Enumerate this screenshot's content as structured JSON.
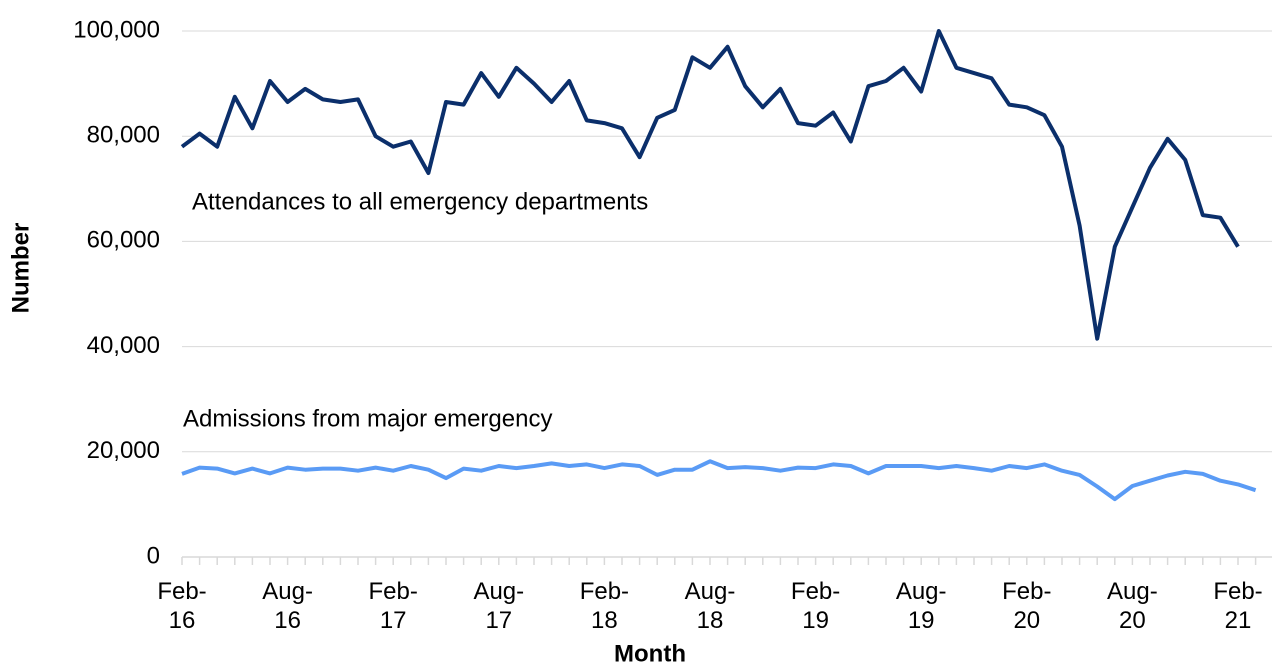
{
  "chart_data": {
    "type": "line",
    "annotations": [
      "Attendances to all emergency departments",
      "Admissions from major emergency"
    ],
    "x_label": "Month",
    "y_label": "Number",
    "categories": [
      "Feb-16",
      null,
      null,
      null,
      null,
      null,
      "Aug-16",
      null,
      null,
      null,
      null,
      null,
      "Feb-17",
      null,
      null,
      null,
      null,
      null,
      "Aug-17",
      null,
      null,
      null,
      null,
      null,
      "Feb-18",
      null,
      null,
      null,
      null,
      null,
      "Aug-18",
      null,
      null,
      null,
      null,
      null,
      "Feb-19",
      null,
      null,
      null,
      null,
      null,
      "Aug-19",
      null,
      null,
      null,
      null,
      null,
      "Feb-20",
      null,
      null,
      null,
      null,
      null,
      "Aug-20",
      null,
      null,
      null,
      null,
      null,
      "Feb-21",
      null
    ],
    "series": [
      {
        "name": "Attendances to all emergency departments",
        "color": "#0b2f6b",
        "values": [
          78000,
          80500,
          78000,
          87500,
          81500,
          90500,
          86500,
          89000,
          87000,
          86500,
          87000,
          80000,
          78000,
          79000,
          73000,
          86500,
          86000,
          92000,
          87500,
          93000,
          90000,
          86500,
          90500,
          83000,
          82500,
          81500,
          76000,
          83500,
          85000,
          95000,
          93000,
          97000,
          89500,
          85500,
          89000,
          82500,
          82000,
          84500,
          79000,
          89500,
          90500,
          93000,
          88500,
          100000,
          93000,
          92000,
          91000,
          86000,
          85500,
          84000,
          78000,
          63000,
          41500,
          59000,
          66500,
          74000,
          79500,
          75500,
          65000,
          64500,
          59000,
          null
        ]
      },
      {
        "name": "Admissions from major emergency",
        "color": "#5a9bf5",
        "values": [
          15800,
          17000,
          16800,
          15900,
          16800,
          15900,
          17000,
          16600,
          16800,
          16800,
          16400,
          17000,
          16400,
          17300,
          16600,
          15000,
          16800,
          16400,
          17300,
          16900,
          17300,
          17800,
          17300,
          17600,
          16900,
          17600,
          17300,
          15600,
          16600,
          16600,
          18200,
          16900,
          17100,
          16900,
          16400,
          17000,
          16900,
          17600,
          17300,
          15900,
          17300,
          17300,
          17300,
          16900,
          17300,
          16900,
          16400,
          17300,
          16900,
          17600,
          16400,
          15600,
          13400,
          11000,
          13500,
          14500,
          15500,
          16200,
          15800,
          14500,
          13800,
          12700
        ]
      }
    ],
    "ylim": [
      0,
      100000
    ],
    "yticks": [
      0,
      {
        "value": 20000,
        "label": "20,000"
      },
      {
        "value": 40000,
        "label": "40,000"
      },
      {
        "value": 60000,
        "label": "60,000"
      },
      {
        "value": 80000,
        "label": "80,000"
      },
      {
        "value": 100000,
        "label": "100,000"
      }
    ],
    "grid": true
  }
}
